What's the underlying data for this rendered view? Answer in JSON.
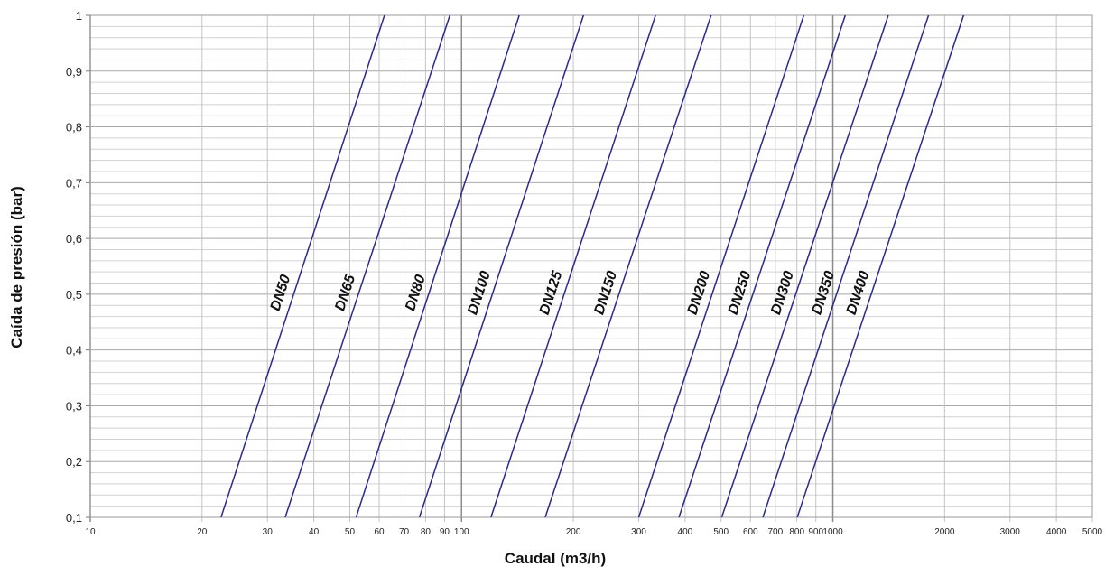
{
  "chart_data": {
    "type": "line",
    "title": "",
    "xlabel": "Caudal (m3/h)",
    "ylabel": "Caída de presión (bar)",
    "x_scale": "log",
    "xlim": [
      10,
      5000
    ],
    "ylim": [
      0.1,
      1
    ],
    "grid": true,
    "x_ticks": [
      "10",
      "20",
      "30",
      "40",
      "50",
      "60",
      "70",
      "80",
      "90",
      "100",
      "200",
      "300",
      "400",
      "500",
      "600",
      "700",
      "800",
      "900",
      "1000",
      "2000",
      "3000",
      "4000",
      "5000"
    ],
    "y_ticks": [
      "0,1",
      "0,2",
      "0,3",
      "0,4",
      "0,5",
      "0,6",
      "0,7",
      "0,8",
      "0,9",
      "1"
    ],
    "series_color": "#2b2a8a",
    "series": [
      {
        "name": "DN50",
        "x": [
          22.5,
          62
        ],
        "y": [
          0.1,
          1
        ]
      },
      {
        "name": "DN65",
        "x": [
          33.5,
          93
        ],
        "y": [
          0.1,
          1
        ]
      },
      {
        "name": "DN80",
        "x": [
          52,
          143
        ],
        "y": [
          0.1,
          1
        ]
      },
      {
        "name": "DN100",
        "x": [
          77,
          213
        ],
        "y": [
          0.1,
          1
        ]
      },
      {
        "name": "DN125",
        "x": [
          120,
          333
        ],
        "y": [
          0.1,
          1
        ]
      },
      {
        "name": "DN150",
        "x": [
          168,
          470
        ],
        "y": [
          0.1,
          1
        ]
      },
      {
        "name": "DN200",
        "x": [
          300,
          835
        ],
        "y": [
          0.1,
          1
        ]
      },
      {
        "name": "DN250",
        "x": [
          385,
          1080
        ],
        "y": [
          0.1,
          1
        ]
      },
      {
        "name": "DN300",
        "x": [
          502,
          1410
        ],
        "y": [
          0.1,
          1
        ]
      },
      {
        "name": "DN350",
        "x": [
          648,
          1810
        ],
        "y": [
          0.1,
          1
        ]
      },
      {
        "name": "DN400",
        "x": [
          802,
          2250
        ],
        "y": [
          0.1,
          1
        ]
      }
    ]
  }
}
